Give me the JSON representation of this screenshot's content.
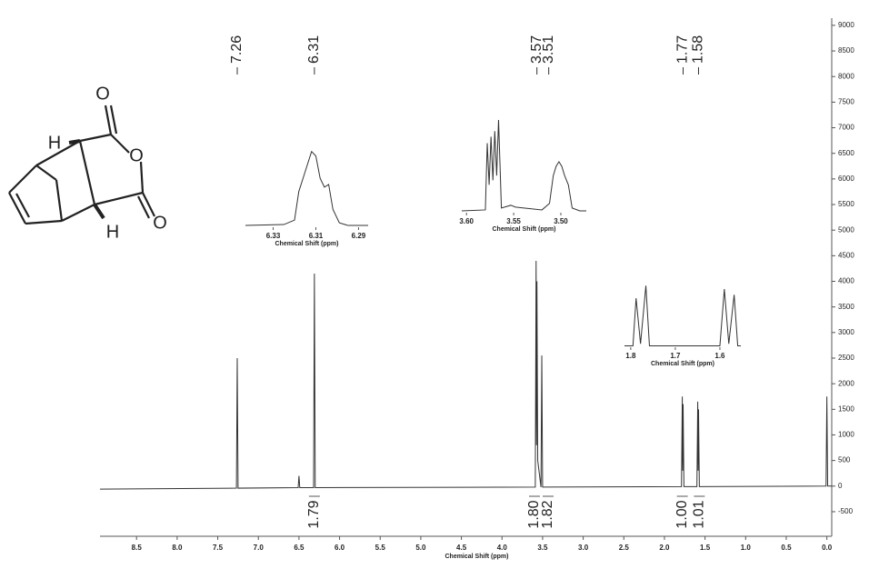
{
  "structure": {
    "atoms": [
      "O",
      "O",
      "O",
      "H",
      "H"
    ]
  },
  "chart_data": [
    {
      "type": "line",
      "xlabel": "Chemical Shift (ppm)",
      "xlim": [
        8.95,
        -0.06
      ],
      "ylim": [
        -980,
        9140
      ],
      "xticks": [
        8.5,
        {
          "value": 8,
          "label": "8.0"
        },
        7.5,
        {
          "value": 7,
          "label": "7.0"
        },
        6.5,
        {
          "value": 6,
          "label": "6.0"
        },
        5.5,
        {
          "value": 5,
          "label": "5.0"
        },
        4.5,
        {
          "value": 4,
          "label": "4.0"
        },
        3.5,
        {
          "value": 3,
          "label": "3.0"
        },
        2.5,
        {
          "value": 2,
          "label": "2.0"
        },
        1.5,
        {
          "value": 1,
          "label": "1.0"
        },
        0.5,
        {
          "value": 0,
          "label": "0.0"
        }
      ],
      "yticks": [
        -500,
        0,
        500,
        1000,
        1500,
        2000,
        2500,
        3000,
        3500,
        4000,
        4500,
        5000,
        5500,
        6000,
        6500,
        7000,
        7500,
        8000,
        8500,
        9000
      ],
      "x": [
        8.95,
        7.27,
        7.26,
        7.25,
        6.51,
        6.5,
        6.49,
        6.32,
        6.31,
        6.3,
        3.59,
        3.58,
        3.575,
        3.57,
        3.56,
        3.52,
        3.51,
        3.5,
        1.79,
        1.78,
        1.775,
        1.77,
        1.76,
        1.6,
        1.59,
        1.585,
        1.58,
        1.57,
        0.01,
        0,
        -0.01,
        -0.06
      ],
      "series": [
        {
          "color": "#333333",
          "values": [
            -60,
            -40,
            2500,
            -40,
            -30,
            200,
            -30,
            -30,
            4150,
            -30,
            -20,
            4400,
            800,
            4000,
            500,
            -20,
            2550,
            -20,
            -10,
            1750,
            300,
            1600,
            -10,
            -10,
            1650,
            300,
            1500,
            -10,
            0,
            1750,
            0,
            0
          ]
        }
      ],
      "peak_labels": [
        7.26,
        6.31,
        3.57,
        3.51,
        1.77,
        1.58
      ],
      "integrals": {
        "x": [
          6.31,
          3.6,
          3.52,
          1.78,
          1.57
        ],
        "values": [
          1.79,
          1.8,
          1.82,
          1,
          1.01
        ],
        "value_labels": [
          "1.79",
          "1.80",
          "1.82",
          "1.00",
          "1.01"
        ]
      }
    },
    {
      "type": "line",
      "xlabel": "Chemical Shift (ppm)",
      "xlim": [
        6.343,
        6.2855
      ],
      "ylim": [
        0,
        100
      ],
      "xticks": [
        6.33,
        6.31,
        6.29
      ],
      "x": [
        6.343,
        6.325,
        6.32,
        6.318,
        6.316,
        6.314,
        6.312,
        6.31,
        6.308,
        6.306,
        6.304,
        6.302,
        6.299,
        6.295,
        6.2855
      ],
      "series": [
        {
          "color": "#333333",
          "values": [
            2,
            3,
            8,
            40,
            55,
            70,
            85,
            80,
            55,
            45,
            48,
            20,
            5,
            2,
            2
          ]
        }
      ]
    },
    {
      "type": "line",
      "xlabel": "Chemical Shift (ppm)",
      "xlim": [
        3.605,
        3.473
      ],
      "ylim": [
        0,
        100
      ],
      "xticks": [
        {
          "value": 3.6,
          "label": "3.60"
        },
        3.55,
        {
          "value": 3.5,
          "label": "3.50"
        }
      ],
      "x": [
        3.605,
        3.58,
        3.578,
        3.576,
        3.574,
        3.572,
        3.57,
        3.568,
        3.566,
        3.563,
        3.553,
        3.548,
        3.52,
        3.512,
        3.508,
        3.505,
        3.502,
        3.499,
        3.496,
        3.492,
        3.488,
        3.48,
        3.473
      ],
      "series": [
        {
          "color": "#333333",
          "values": [
            2,
            3,
            75,
            30,
            82,
            35,
            88,
            40,
            100,
            5,
            8,
            6,
            3,
            10,
            40,
            50,
            55,
            50,
            40,
            30,
            5,
            2,
            2
          ]
        }
      ]
    },
    {
      "type": "line",
      "xlabel": "Chemical Shift (ppm)",
      "xlim": [
        1.814,
        1.553
      ],
      "ylim": [
        0,
        100
      ],
      "xticks": [
        1.8,
        1.7,
        1.6
      ],
      "x": [
        1.814,
        1.795,
        1.788,
        1.778,
        1.766,
        1.758,
        1.6,
        1.59,
        1.58,
        1.568,
        1.56,
        1.553
      ],
      "series": [
        {
          "color": "#333333",
          "values": [
            2,
            2,
            70,
            5,
            88,
            2,
            2,
            83,
            5,
            75,
            2,
            2
          ]
        }
      ]
    }
  ]
}
